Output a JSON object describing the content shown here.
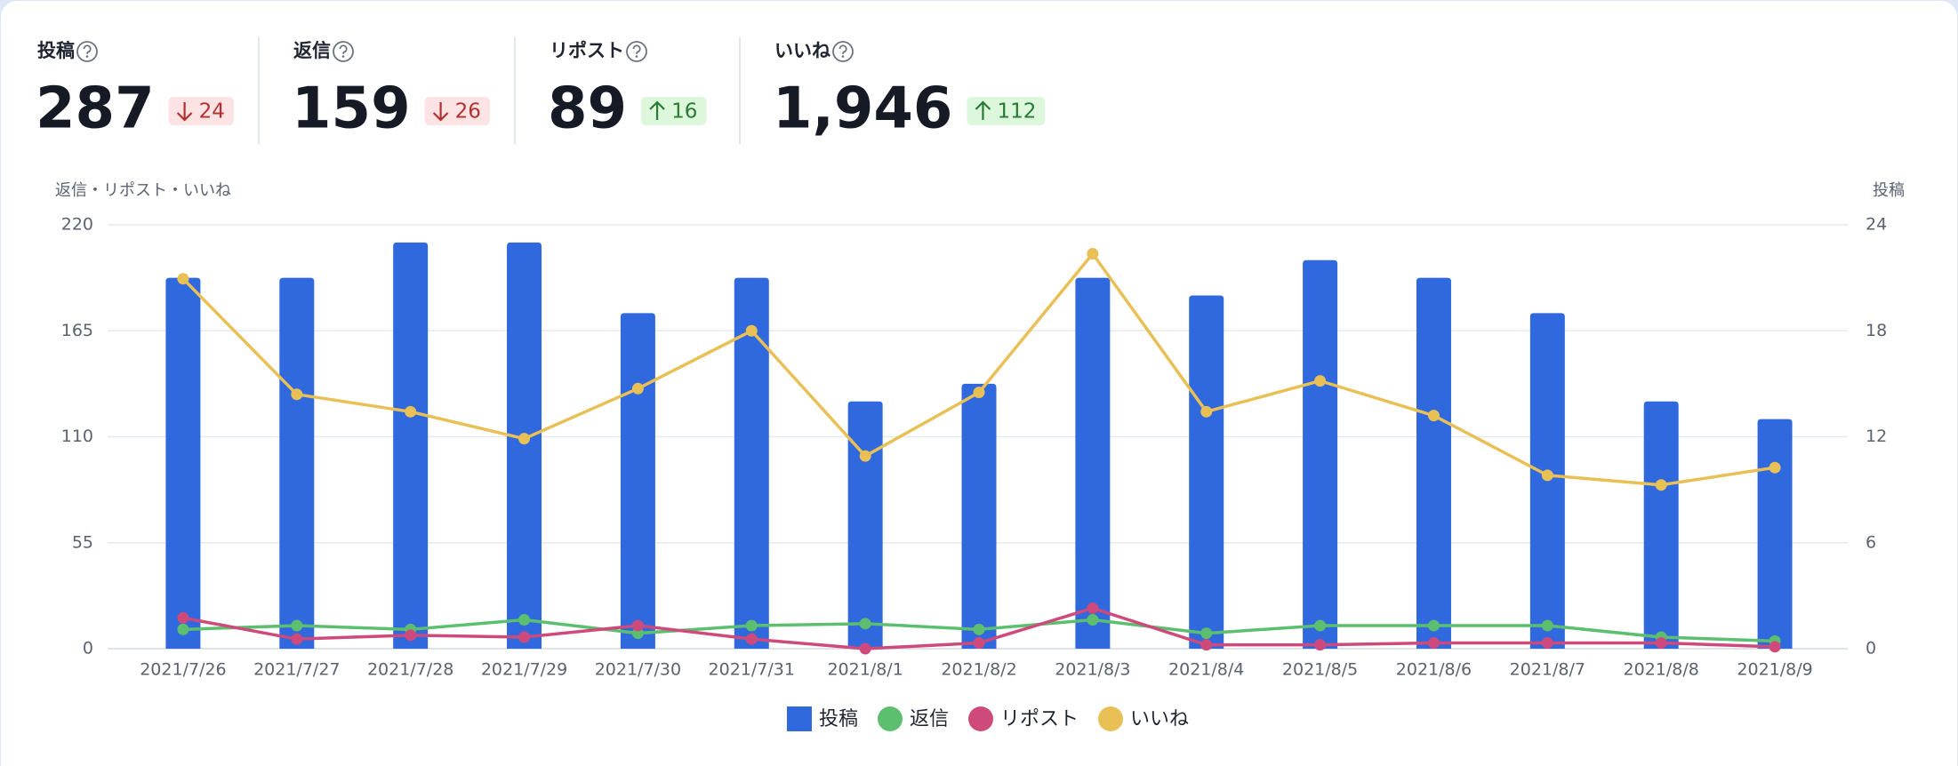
{
  "kpis": [
    {
      "label": "投稿",
      "value": "287",
      "delta": "24",
      "trend": "down"
    },
    {
      "label": "返信",
      "value": "159",
      "delta": "26",
      "trend": "down"
    },
    {
      "label": "リポスト",
      "value": "89",
      "delta": "16",
      "trend": "up"
    },
    {
      "label": "いいね",
      "value": "1,946",
      "delta": "112",
      "trend": "up"
    }
  ],
  "chart_data": {
    "type": "bar-line",
    "y_label": "返信・リポスト・いいね",
    "y2_label": "投稿",
    "categories": [
      "2021/7/26",
      "2021/7/27",
      "2021/7/28",
      "2021/7/29",
      "2021/7/30",
      "2021/7/31",
      "2021/8/1",
      "2021/8/2",
      "2021/8/3",
      "2021/8/4",
      "2021/8/5",
      "2021/8/6",
      "2021/8/7",
      "2021/8/8",
      "2021/8/9"
    ],
    "series": [
      {
        "name": "投稿",
        "color": "#3068dd",
        "kind": "bar",
        "axis": "y2",
        "values": [
          21,
          21,
          23,
          23,
          19,
          21,
          14,
          15,
          21,
          20,
          22,
          21,
          19,
          14,
          13
        ]
      },
      {
        "name": "返信",
        "color": "#5cbf6f",
        "kind": "line",
        "values": [
          10,
          12,
          10,
          15,
          8,
          12,
          13,
          10,
          15,
          8,
          12,
          12,
          12,
          6,
          4
        ]
      },
      {
        "name": "リポスト",
        "color": "#cf4a7c",
        "kind": "line",
        "values": [
          16,
          5,
          7,
          6,
          12,
          5,
          0,
          3,
          21,
          2,
          2,
          3,
          3,
          3,
          1
        ]
      },
      {
        "name": "いいね",
        "color": "#e8c055",
        "kind": "line",
        "values": [
          192,
          132,
          123,
          109,
          135,
          165,
          100,
          133,
          205,
          123,
          139,
          121,
          90,
          85,
          94
        ]
      }
    ],
    "ylim": [
      0,
      220
    ],
    "yticks": [
      0,
      55,
      110,
      165,
      220
    ],
    "y2lim": [
      0,
      24
    ],
    "y2ticks": [
      0,
      6,
      12,
      18,
      24
    ],
    "grid": true,
    "legend": "bottom"
  }
}
